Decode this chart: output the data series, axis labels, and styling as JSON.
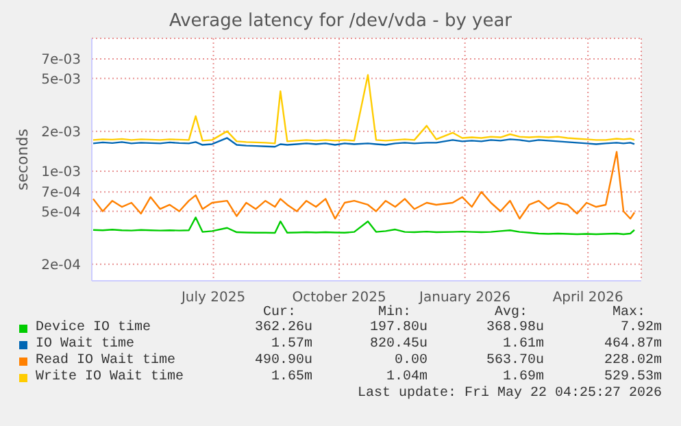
{
  "chart_data": {
    "type": "line",
    "title": "Average latency for /dev/vda - by year",
    "ylabel": "seconds",
    "x": [
      "2025-04-19",
      "2025-04-26",
      "2025-05-03",
      "2025-05-10",
      "2025-05-17",
      "2025-05-24",
      "2025-05-31",
      "2025-06-07",
      "2025-06-14",
      "2025-06-21",
      "2025-06-28",
      "2025-07-03",
      "2025-07-08",
      "2025-07-15",
      "2025-07-26",
      "2025-08-02",
      "2025-08-09",
      "2025-08-16",
      "2025-08-23",
      "2025-08-30",
      "2025-09-03",
      "2025-09-08",
      "2025-09-15",
      "2025-09-22",
      "2025-09-29",
      "2025-10-06",
      "2025-10-13",
      "2025-10-20",
      "2025-10-27",
      "2025-11-06",
      "2025-11-12",
      "2025-11-19",
      "2025-11-26",
      "2025-12-03",
      "2025-12-10",
      "2025-12-19",
      "2025-12-26",
      "2026-01-07",
      "2026-01-14",
      "2026-01-21",
      "2026-01-28",
      "2026-02-04",
      "2026-02-11",
      "2026-02-18",
      "2026-02-25",
      "2026-03-04",
      "2026-03-11",
      "2026-03-18",
      "2026-03-25",
      "2026-04-01",
      "2026-04-08",
      "2026-04-15",
      "2026-04-22",
      "2026-04-29",
      "2026-05-07",
      "2026-05-12",
      "2026-05-17",
      "2026-05-20"
    ],
    "series": [
      {
        "name": "Device IO time",
        "color": "#00cc00",
        "values": [
          0.000362,
          0.00036,
          0.000364,
          0.00036,
          0.000358,
          0.000362,
          0.00036,
          0.000358,
          0.00036,
          0.000358,
          0.00036,
          0.00045,
          0.00035,
          0.000355,
          0.000375,
          0.000348,
          0.000346,
          0.000345,
          0.000345,
          0.000344,
          0.00042,
          0.000345,
          0.000346,
          0.000348,
          0.000346,
          0.000348,
          0.000346,
          0.000345,
          0.00035,
          0.00042,
          0.00035,
          0.000355,
          0.000365,
          0.00035,
          0.000348,
          0.000352,
          0.000348,
          0.00035,
          0.000352,
          0.00035,
          0.000348,
          0.00035,
          0.000355,
          0.00036,
          0.00035,
          0.000345,
          0.00034,
          0.000338,
          0.00034,
          0.000338,
          0.000336,
          0.000338,
          0.000336,
          0.000338,
          0.00034,
          0.000336,
          0.00034,
          0.000362
        ]
      },
      {
        "name": "IO Wait time",
        "color": "#0066b3",
        "values": [
          0.00162,
          0.00165,
          0.00163,
          0.00166,
          0.00162,
          0.00164,
          0.00163,
          0.00162,
          0.00165,
          0.00163,
          0.00162,
          0.00166,
          0.00158,
          0.0016,
          0.00178,
          0.00158,
          0.00156,
          0.00155,
          0.00154,
          0.00153,
          0.0016,
          0.00158,
          0.0016,
          0.00162,
          0.0016,
          0.00162,
          0.00158,
          0.00162,
          0.0016,
          0.00162,
          0.0016,
          0.00158,
          0.00162,
          0.00164,
          0.00162,
          0.00164,
          0.00164,
          0.00172,
          0.00168,
          0.0017,
          0.00168,
          0.00172,
          0.0017,
          0.00174,
          0.00172,
          0.00168,
          0.00172,
          0.0017,
          0.00168,
          0.00166,
          0.00164,
          0.00162,
          0.0016,
          0.00162,
          0.00164,
          0.00162,
          0.00164,
          0.0016
        ]
      },
      {
        "name": "Read IO Wait time",
        "color": "#ff8000",
        "values": [
          0.00062,
          0.0005,
          0.0006,
          0.00054,
          0.00058,
          0.00048,
          0.00064,
          0.00052,
          0.00056,
          0.0005,
          0.0006,
          0.00066,
          0.00052,
          0.00058,
          0.0006,
          0.00046,
          0.00058,
          0.00052,
          0.0006,
          0.00054,
          0.00062,
          0.00056,
          0.0005,
          0.0006,
          0.00054,
          0.00062,
          0.00044,
          0.00058,
          0.0006,
          0.00056,
          0.0005,
          0.0006,
          0.00054,
          0.00062,
          0.00052,
          0.00058,
          0.00056,
          0.00058,
          0.00064,
          0.00054,
          0.0007,
          0.00058,
          0.0005,
          0.0006,
          0.00044,
          0.00056,
          0.0006,
          0.00052,
          0.00058,
          0.00056,
          0.00048,
          0.00058,
          0.00054,
          0.00056,
          0.0014,
          0.0005,
          0.00044,
          0.00049
        ]
      },
      {
        "name": "Write IO Wait time",
        "color": "#ffcc00",
        "values": [
          0.00172,
          0.00174,
          0.00173,
          0.00175,
          0.00172,
          0.00174,
          0.00173,
          0.00172,
          0.00174,
          0.00173,
          0.00172,
          0.0026,
          0.0017,
          0.00172,
          0.002,
          0.00168,
          0.00166,
          0.00165,
          0.00164,
          0.00162,
          0.004,
          0.00168,
          0.0017,
          0.00172,
          0.0017,
          0.00172,
          0.0017,
          0.00172,
          0.0017,
          0.0053,
          0.00172,
          0.0017,
          0.00172,
          0.00174,
          0.00172,
          0.0022,
          0.00174,
          0.00195,
          0.00178,
          0.0018,
          0.00178,
          0.00182,
          0.0018,
          0.0019,
          0.00182,
          0.0018,
          0.00182,
          0.0018,
          0.00182,
          0.00178,
          0.00176,
          0.00174,
          0.00172,
          0.00172,
          0.00176,
          0.00174,
          0.00176,
          0.00172
        ]
      }
    ],
    "log": "y",
    "ylim": [
      0.00015,
      0.01
    ],
    "yticks": [
      {
        "value": 0.0002,
        "label": "2e-04"
      },
      {
        "value": 0.0005,
        "label": "5e-04"
      },
      {
        "value": 0.0007,
        "label": "7e-04"
      },
      {
        "value": 0.001,
        "label": "1e-03"
      },
      {
        "value": 0.002,
        "label": "2e-03"
      },
      {
        "value": 0.005,
        "label": "5e-03"
      },
      {
        "value": 0.007,
        "label": "7e-03"
      }
    ],
    "xlim": [
      "2025-04-18",
      "2026-05-25"
    ],
    "xticks": [
      {
        "value": "2025-07-16",
        "label": "July 2025"
      },
      {
        "value": "2025-10-16",
        "label": "October 2025"
      },
      {
        "value": "2026-01-16",
        "label": "January 2026"
      },
      {
        "value": "2026-04-16",
        "label": "April 2026"
      }
    ],
    "grid": true,
    "legend": "bottom",
    "annotations": [
      "Cur:",
      "Min:",
      "Avg:",
      "Max:",
      "362.26u",
      "197.80u",
      "368.98u",
      "7.92m",
      "1.57m",
      "820.45u",
      "1.61m",
      "464.87m",
      "490.90u",
      "0.00",
      "563.70u",
      "228.02m",
      "1.65m",
      "1.04m",
      "1.69m",
      "529.53m",
      "Last update: Fri May 22 04:25:27 2026"
    ]
  }
}
